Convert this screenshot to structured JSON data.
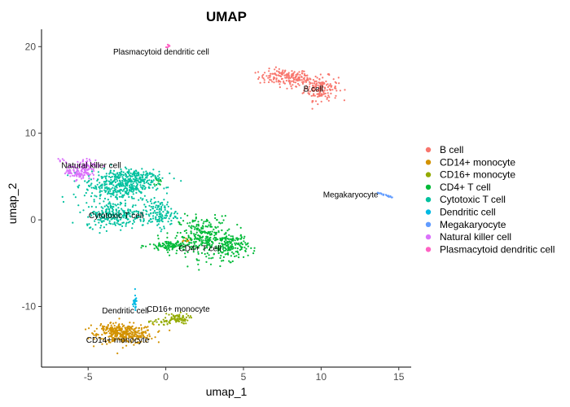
{
  "chart_data": {
    "type": "scatter",
    "title": "UMAP",
    "xlabel": "umap_1",
    "ylabel": "umap_2",
    "xlim": [
      -8,
      15.8
    ],
    "ylim": [
      -17,
      22
    ],
    "x_ticks": [
      -5,
      0,
      5,
      10,
      15
    ],
    "y_ticks": [
      -10,
      0,
      10,
      20
    ],
    "grid": false,
    "legend_position": "right",
    "series": [
      {
        "name": "B cell",
        "color": "#F8766D",
        "clusters": [
          {
            "x": 7.6,
            "y": 16.5,
            "sx": 0.8,
            "sy": 0.45,
            "n": 140
          },
          {
            "x": 10.0,
            "y": 15.2,
            "sx": 0.55,
            "sy": 0.7,
            "n": 160
          },
          {
            "x": 8.8,
            "y": 15.9,
            "sx": 0.5,
            "sy": 0.4,
            "n": 40
          }
        ]
      },
      {
        "name": "CD14+ monocyte",
        "color": "#D39200",
        "clusters": [
          {
            "x": -2.6,
            "y": -13.2,
            "sx": 0.9,
            "sy": 0.55,
            "n": 320
          },
          {
            "x": -3.5,
            "y": -12.6,
            "sx": 0.5,
            "sy": 0.4,
            "n": 60
          },
          {
            "x": 1.3,
            "y": -2.2,
            "sx": 0.15,
            "sy": 0.15,
            "n": 8
          }
        ]
      },
      {
        "name": "CD16+ monocyte",
        "color": "#93AA00",
        "clusters": [
          {
            "x": 0.7,
            "y": -11.4,
            "sx": 0.4,
            "sy": 0.3,
            "n": 70
          },
          {
            "x": -0.4,
            "y": -11.8,
            "sx": 0.35,
            "sy": 0.2,
            "n": 25
          }
        ]
      },
      {
        "name": "CD4+ T cell",
        "color": "#00BA38",
        "clusters": [
          {
            "x": 2.5,
            "y": -2.0,
            "sx": 0.8,
            "sy": 1.2,
            "n": 260
          },
          {
            "x": 4.2,
            "y": -3.0,
            "sx": 0.55,
            "sy": 0.8,
            "n": 160
          },
          {
            "x": 0.4,
            "y": -3.0,
            "sx": 0.75,
            "sy": 0.35,
            "n": 120
          },
          {
            "x": -0.5,
            "y": 4.3,
            "sx": 0.1,
            "sy": 0.2,
            "n": 12
          }
        ]
      },
      {
        "name": "Cytotoxic T cell",
        "color": "#00C19F",
        "clusters": [
          {
            "x": -3.0,
            "y": 4.0,
            "sx": 1.1,
            "sy": 0.9,
            "n": 380
          },
          {
            "x": -3.2,
            "y": 0.6,
            "sx": 1.0,
            "sy": 0.7,
            "n": 260
          },
          {
            "x": -0.4,
            "y": 0.7,
            "sx": 0.55,
            "sy": 0.8,
            "n": 130
          },
          {
            "x": -2.0,
            "y": 5.0,
            "sx": 0.9,
            "sy": 0.5,
            "n": 120
          }
        ]
      },
      {
        "name": "Dendritic cell",
        "color": "#00B9E3",
        "clusters": [
          {
            "x": -2.0,
            "y": -9.6,
            "sx": 0.07,
            "sy": 0.45,
            "n": 26
          }
        ]
      },
      {
        "name": "Megakaryocyte",
        "color": "#619CFF",
        "line": [
          [
            13.6,
            3.2
          ],
          [
            14.6,
            2.5
          ]
        ],
        "n": 22
      },
      {
        "name": "Natural killer cell",
        "color": "#DB72FB",
        "clusters": [
          {
            "x": -5.6,
            "y": 5.6,
            "sx": 0.4,
            "sy": 0.5,
            "n": 120
          },
          {
            "x": -4.9,
            "y": 6.3,
            "sx": 0.35,
            "sy": 0.35,
            "n": 50
          },
          {
            "x": -6.7,
            "y": 6.9,
            "sx": 0.2,
            "sy": 0.12,
            "n": 6
          }
        ]
      },
      {
        "name": "Plasmacytoid dendritic cell",
        "color": "#FF61C3",
        "clusters": [
          {
            "x": 0.15,
            "y": 20.1,
            "sx": 0.08,
            "sy": 0.1,
            "n": 8
          }
        ]
      }
    ],
    "annotations": [
      {
        "text": "Plasmacytoid dendritic cell",
        "x": -0.3,
        "y": 19.1
      },
      {
        "text": "B cell",
        "x": 9.5,
        "y": 14.8
      },
      {
        "text": "Natural killer cell",
        "x": -4.8,
        "y": 6.0
      },
      {
        "text": "Megakaryocyte",
        "x": 11.9,
        "y": 2.6
      },
      {
        "text": "Cytotoxic T cell",
        "x": -3.2,
        "y": 0.2
      },
      {
        "text": "CD4+ T cell",
        "x": 2.2,
        "y": -3.6
      },
      {
        "text": "Dendritic cell",
        "x": -2.6,
        "y": -10.8
      },
      {
        "text": "CD16+ monocyte",
        "x": 0.8,
        "y": -10.6
      },
      {
        "text": "CD14+ monocyte",
        "x": -3.1,
        "y": -14.2
      }
    ]
  }
}
